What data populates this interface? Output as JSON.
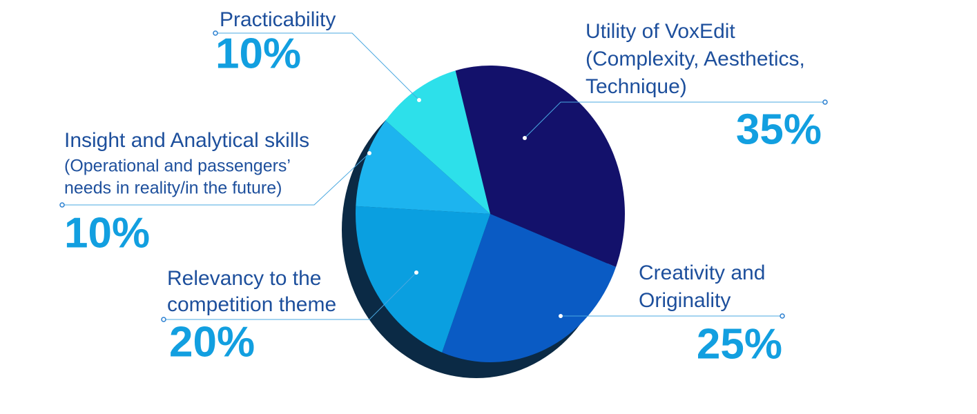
{
  "chart_data": {
    "type": "pie",
    "categories": [
      [
        "Utility of VoxEdit",
        "(Complexity, Aesthetics,",
        "Technique)"
      ],
      [
        "Creativity and",
        "Originality"
      ],
      [
        "Relevancy to the",
        "competition theme"
      ],
      [
        "Insight and Analytical skills",
        "(Operational and passengers’",
        "needs in reality/in the future)"
      ],
      [
        "Practicability"
      ]
    ],
    "values": [
      35,
      25,
      20,
      10,
      10
    ],
    "value_labels": [
      "35%",
      "25%",
      "20%",
      "10%",
      "10%"
    ],
    "colors": [
      "#13116b",
      "#0a5bc4",
      "#0a9fe0",
      "#1db4ef",
      "#2de0ea"
    ]
  }
}
